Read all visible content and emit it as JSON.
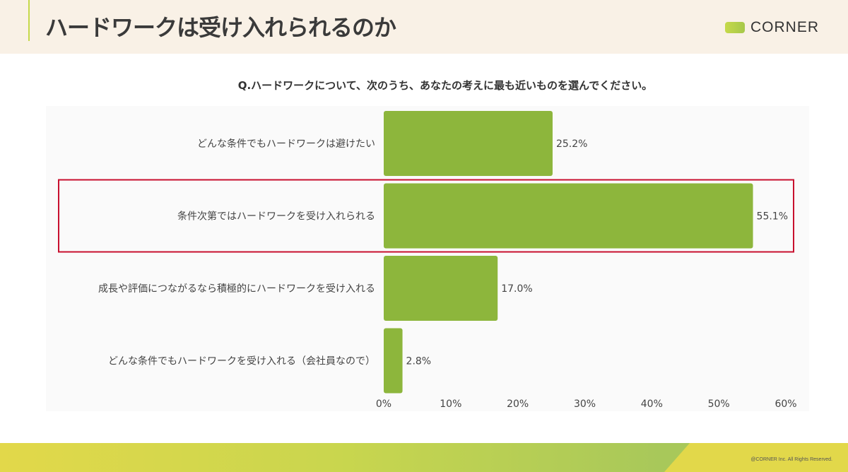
{
  "header": {
    "title": "ハードワークは受け入れられるのか",
    "logo_text": "CORNER"
  },
  "footer": {
    "copyright": "@CORNER Inc. All Rights Reserved."
  },
  "chart_data": {
    "type": "bar",
    "orientation": "horizontal",
    "title": "Q.ハードワークについて、次のうち、あなたの考えに最も近いものを選んでください。",
    "categories": [
      "どんな条件でもハードワークは避けたい",
      "条件次第ではハードワークを受け入れられる",
      "成長や評価につながるなら積極的にハードワークを受け入れる",
      "どんな条件でもハードワークを受け入れる（会社員なので）"
    ],
    "values": [
      25.2,
      55.1,
      17.0,
      2.8
    ],
    "data_labels": [
      "25.2%",
      "55.1%",
      "17.0%",
      "2.8%"
    ],
    "xlim": [
      0,
      60
    ],
    "xticks": [
      "0%",
      "10%",
      "20%",
      "30%",
      "40%",
      "50%",
      "60%"
    ],
    "highlighted_category": "条件次第ではハードワークを受け入れられる",
    "grid": false,
    "colors": {
      "bar": "#8db63c",
      "highlight_box": "#c8102e"
    }
  }
}
